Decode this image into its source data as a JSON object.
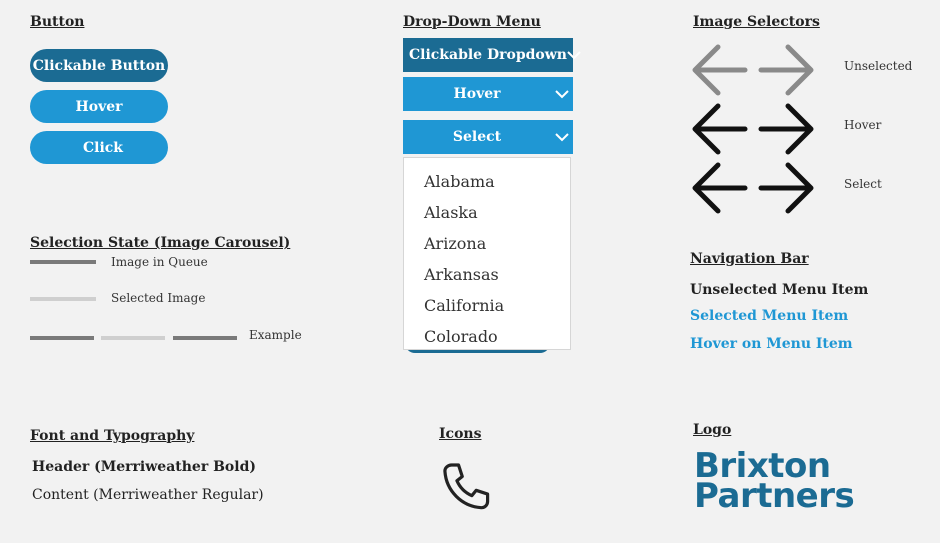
{
  "button": {
    "title": "Button",
    "states": [
      {
        "label": "Clickable Button",
        "color": "#1b6b93"
      },
      {
        "label": "Hover",
        "color": "#1f97d4"
      },
      {
        "label": "Click",
        "color": "#1f97d4"
      }
    ]
  },
  "dropdown": {
    "title": "Drop-Down Menu",
    "states": [
      {
        "label": "Clickable Dropdown",
        "icon": "chevron-down-icon"
      },
      {
        "label": "Hover",
        "icon": "chevron-down-icon"
      },
      {
        "label": "Select",
        "icon": "chevron-down-icon"
      }
    ],
    "options": [
      "Alabama",
      "Alaska",
      "Arizona",
      "Arkansas",
      "California",
      "Colorado"
    ]
  },
  "image_selectors": {
    "title": "Image Selectors",
    "states": [
      {
        "label": "Unselected",
        "color": "#8a8a8a",
        "icons": [
          "arrow-left-icon",
          "arrow-right-icon"
        ]
      },
      {
        "label": "Hover",
        "color": "#111111",
        "icons": [
          "arrow-left-icon",
          "arrow-right-icon"
        ]
      },
      {
        "label": "Select",
        "color": "#111111",
        "icons": [
          "arrow-left-icon",
          "arrow-right-icon"
        ]
      }
    ]
  },
  "carousel": {
    "title": "Selection State (Image Carousel)",
    "queue_label": "Image in Queue",
    "selected_label": "Selected Image",
    "example_label": "Example"
  },
  "nav": {
    "title": "Navigation Bar",
    "unselected": "Unselected Menu Item",
    "selected": "Selected Menu Item",
    "hover": "Hover on Menu Item",
    "accent": "#1f97d4"
  },
  "typography": {
    "title": "Font and Typography",
    "header": "Header (Merriweather Bold)",
    "content": "Content (Merriweather Regular)"
  },
  "icons": {
    "title": "Icons",
    "items": [
      "phone-icon"
    ]
  },
  "logo": {
    "title": "Logo",
    "line1": "Brixton",
    "line2": "Partners",
    "color": "#1b6b93"
  }
}
